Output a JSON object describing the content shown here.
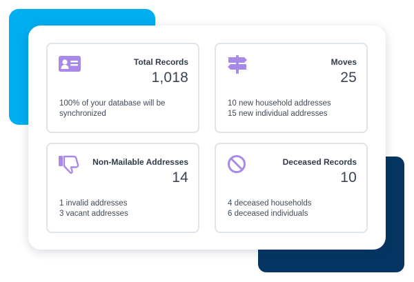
{
  "colors": {
    "accent_purple": "#a989e8",
    "accent_blue": "#00aeef",
    "accent_navy": "#053563",
    "card_border": "#dfe3ea"
  },
  "cards": [
    {
      "icon": "id-card-icon",
      "title": "Total Records",
      "count": "1,018",
      "lines": [
        "100% of your database will be synchronized"
      ]
    },
    {
      "icon": "signpost-icon",
      "title": "Moves",
      "count": "25",
      "lines": [
        "10 new household addresses",
        "15 new individual addresses"
      ]
    },
    {
      "icon": "thumbs-down-icon",
      "title": "Non-Mailable Addresses",
      "count": "14",
      "lines": [
        "1 invalid addresses",
        "3 vacant addresses"
      ]
    },
    {
      "icon": "prohibited-icon",
      "title": "Deceased Records",
      "count": "10",
      "lines": [
        "4 deceased households",
        "6 deceased individuals"
      ]
    }
  ]
}
